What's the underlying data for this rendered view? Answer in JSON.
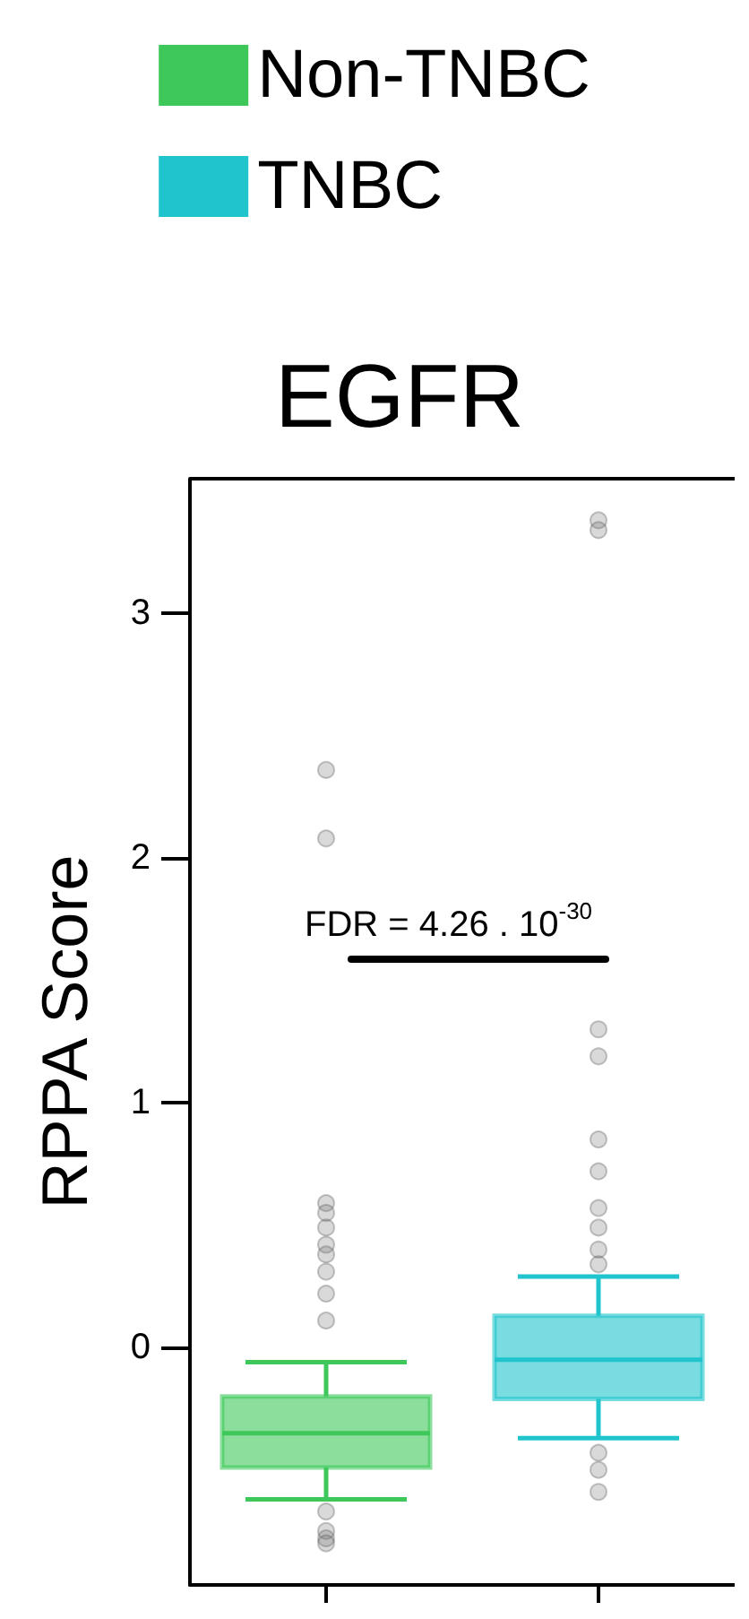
{
  "chart_data": {
    "type": "box",
    "title": "EGFR",
    "ylabel": "RPPA Score",
    "categories": [
      null,
      null
    ],
    "series": [
      {
        "name": "Non-TNBC",
        "color": "#3ec85a",
        "boxes": [
          {
            "low": -0.62,
            "q1": -0.49,
            "median": -0.35,
            "q3": -0.2,
            "high": -0.06,
            "outliers": [
              2.36,
              2.08,
              0.59,
              0.55,
              0.49,
              0.42,
              0.38,
              0.31,
              0.22,
              0.11,
              -0.67,
              -0.75,
              -0.78,
              -0.8
            ]
          },
          null
        ]
      },
      {
        "name": "TNBC",
        "color": "#20c4cc",
        "boxes": [
          null,
          {
            "low": -0.37,
            "q1": -0.21,
            "median": -0.05,
            "q3": 0.13,
            "high": 0.29,
            "outliers": [
              3.38,
              3.34,
              1.3,
              1.19,
              0.85,
              0.72,
              0.57,
              0.49,
              0.4,
              0.34,
              -0.43,
              -0.5,
              -0.59
            ]
          }
        ]
      }
    ],
    "ylim": [
      -0.97,
      3.55
    ],
    "yticks": [
      0,
      1,
      2,
      3
    ],
    "grid": false,
    "legend": "top",
    "annotations": [
      "FDR = 4.26 . 10$^{-30}$"
    ]
  }
}
